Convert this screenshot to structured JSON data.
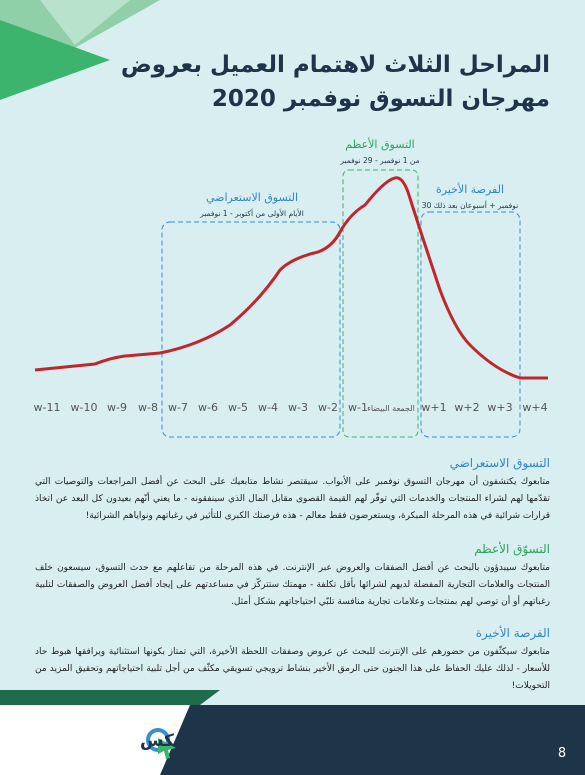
{
  "header": {
    "title_lines": [
      "المراحل الثلاث لاهتمام العميل بعروض",
      "مهرجان التسوق نوفمبر 2020"
    ]
  },
  "diagram": {
    "phases": [
      {
        "name": "التسوق الاستعراضي",
        "period": "الأيام الأولى من أكتوبر - 1 نوفمبر"
      },
      {
        "name": "التسوق الأعظم",
        "period": "من 1 نوفمبر - 29 نوفمبر"
      },
      {
        "name": "الفرصة الأخيرة",
        "period": "نوفمبر + أسبوعان بعد ذلك 30"
      }
    ],
    "x_labels": [
      "w-11",
      "w-10",
      "w-9",
      "w-8",
      "w-7",
      "w-6",
      "w-5",
      "w-4",
      "w-3",
      "w-2",
      "w-1",
      "الجمعة البيضاء",
      "w+1",
      "w+2",
      "w+3",
      "w+4"
    ]
  },
  "sections": [
    {
      "heading": "التسوق الاستعراضي",
      "text": "متابعوك يكتشفون أن مهرجان التسوق نوفمبر على الأبواب. سيقتصر نشاط متابعيك على البحث عن أفضل المراجعات والتوصيات التي تقدّمها لهم لشراء المنتجات والخدمات التي توفّر لهم القيمة القصوى مقابل المال الذي سينفقونه - ما يعني أنّهم بعيدون كل البعد عن اتخاذ قرارات شرائية في هذه المرحلة المبكرة، ويستعرضون فقط معالم - هذه فرصتك الكبرى للتأثير في رغباتهم ونواياهم الشرائية!"
    },
    {
      "heading": "التسوّق الأعظم",
      "text": "متابعوك سيبدؤون بالبحث عن أفضل الصفقات والعروض عبر الإنترنت. في هذه المرحلة من تفاعلهم مع حدث التسوق، سيسعون خلف المنتجات والعلامات التجارية المفضلة لديهم لشرائها بأقل تكلفة - مهمتك ستتركّز في مساعدتهم على إيجاد أفضل العروض والصفقات لتلبية رغباتهم أو أن توصي لهم بمنتجات وعلامات تجارية منافسة تلبّي احتياجاتهم بشكل أمثل."
    },
    {
      "heading": "الفرصة الأخيرة",
      "text": "متابعوك سيكثّفون من حضورهم على الإنترنت للبحث عن عروض وصفقات اللحظة الأخيرة، التي تمتاز بكونها استثنائية ويرافقها هبوط حاد للأسعار - لذلك عليك الحفاظ على هذا الجنون حتى الرمق الأخير بنشاط ترويجي تسويقي مكثّف من أجل تلبية احتياجاتهم وتحقيق المزيد من التحويلات!"
    }
  ],
  "footer": {
    "logo": "عَرَب كليكس",
    "page_number": "8"
  }
}
